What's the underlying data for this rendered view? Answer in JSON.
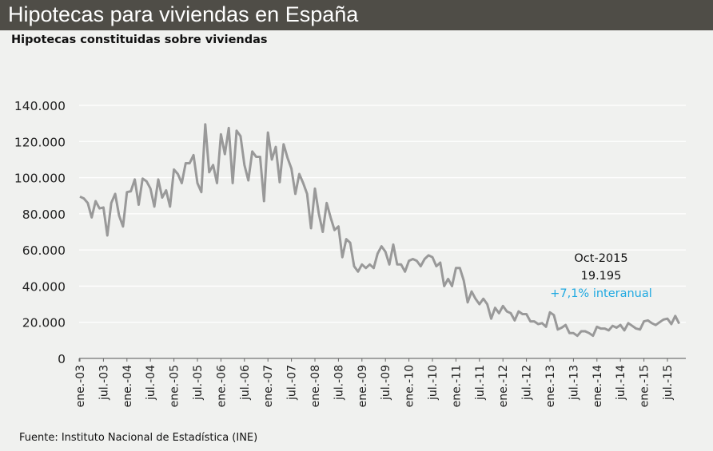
{
  "header": {
    "title": "Hipotecas para viviendas en España"
  },
  "subtitle": "Hipotecas constituidas sobre viviendas",
  "source": "Fuente: Instituto Nacional de Estadística (INE)",
  "annotation": {
    "date": "Oct-2015",
    "value": "19.195",
    "change": "+7,1% interanual",
    "change_color": "#1fa9e1"
  },
  "chart_data": {
    "type": "line",
    "title": "Hipotecas constituidas sobre viviendas",
    "xlabel": "",
    "ylabel": "",
    "ylim": [
      0,
      140000
    ],
    "yticks": [
      "0",
      "20.000",
      "40.000",
      "60.000",
      "80.000",
      "100.000",
      "120.000",
      "140.000"
    ],
    "xtick_labels": [
      "ene.-03",
      "jul.-03",
      "ene.-04",
      "jul.-04",
      "ene.-05",
      "jul.-05",
      "ene.-06",
      "jul.-06",
      "ene.-07",
      "jul.-07",
      "ene.-08",
      "jul.-08",
      "ene.-09",
      "jul.-09",
      "ene.-10",
      "jul.-10",
      "ene.-11",
      "jul.-11",
      "ene.-12",
      "jul.-12",
      "ene.-13",
      "jul.-13",
      "ene.-14",
      "jul.-14",
      "ene.-15",
      "jul.-15"
    ],
    "x_start": "2003-01",
    "x_end": "2015-10",
    "frequency": "monthly",
    "grid": true,
    "line_color": "#999999",
    "values": [
      89500,
      88500,
      86000,
      78000,
      87000,
      83000,
      83500,
      68000,
      86000,
      91000,
      79000,
      73000,
      92000,
      92500,
      99000,
      85000,
      99500,
      98000,
      94000,
      84000,
      99000,
      89000,
      93000,
      84000,
      104500,
      102000,
      97000,
      108000,
      108000,
      112500,
      97000,
      92000,
      129500,
      103000,
      107000,
      97000,
      124000,
      113000,
      127500,
      97000,
      126000,
      123000,
      107000,
      98500,
      114500,
      111500,
      111500,
      87000,
      125000,
      110000,
      117000,
      97500,
      118500,
      111000,
      105000,
      91000,
      102000,
      97000,
      91000,
      72000,
      94000,
      80000,
      70000,
      86000,
      78000,
      71000,
      73000,
      56000,
      66000,
      64000,
      51000,
      48000,
      52000,
      50000,
      52000,
      50000,
      58000,
      62000,
      59000,
      52000,
      63000,
      52000,
      52000,
      48000,
      54000,
      55000,
      54000,
      51000,
      55000,
      57000,
      56000,
      51000,
      53000,
      40000,
      44000,
      40000,
      50000,
      50000,
      43000,
      31000,
      37000,
      33000,
      30000,
      33000,
      30000,
      22000,
      28000,
      25000,
      29000,
      26000,
      25000,
      21000,
      26000,
      24500,
      24500,
      20500,
      20500,
      19000,
      19500,
      17500,
      25500,
      24000,
      16000,
      17000,
      18500,
      14000,
      14000,
      12500,
      15000,
      15000,
      14000,
      12500,
      17500,
      16500,
      16500,
      15500,
      18000,
      17000,
      18500,
      15500,
      19500,
      18000,
      16500,
      16000,
      20500,
      21000,
      19500,
      18500,
      20000,
      21500,
      22000,
      19000,
      23500,
      19195
    ]
  }
}
